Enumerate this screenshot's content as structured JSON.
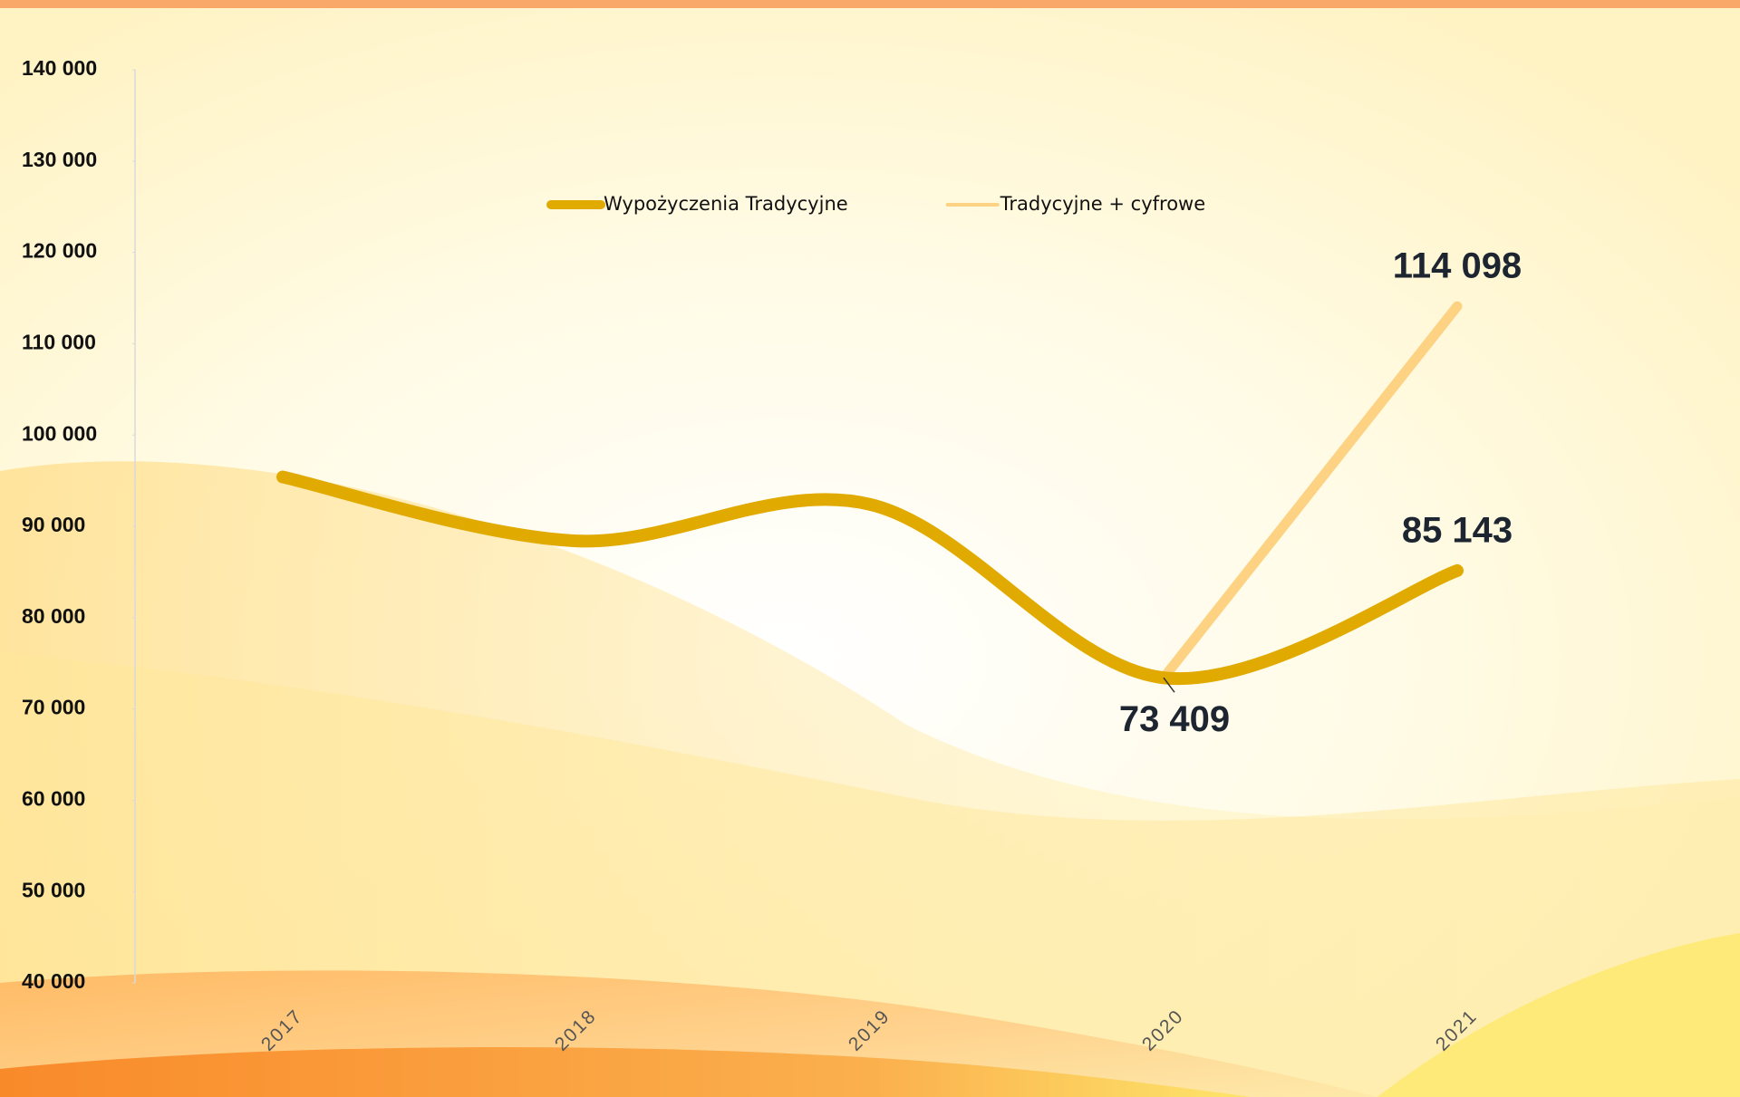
{
  "chart_data": {
    "type": "line",
    "categories": [
      "2017",
      "2018",
      "2019",
      "2020",
      "2021"
    ],
    "series": [
      {
        "name": "Wypożyczenia Tradycyjne",
        "color": "#e1aa00",
        "smooth": true,
        "values": [
          95400,
          88400,
          92400,
          73409,
          85143
        ],
        "value_labels": [
          null,
          null,
          null,
          "73 409",
          "85 143"
        ]
      },
      {
        "name": "Tradycyjne + cyfrowe",
        "color": "#fdd282",
        "smooth": false,
        "values": [
          null,
          null,
          null,
          73409,
          114098
        ],
        "value_labels": [
          null,
          null,
          null,
          null,
          "114 098"
        ]
      }
    ],
    "ylim": [
      40000,
      140000
    ],
    "yticks": [
      {
        "value": 40000,
        "label": "40 000"
      },
      {
        "value": 50000,
        "label": "50 000"
      },
      {
        "value": 60000,
        "label": "60 000"
      },
      {
        "value": 70000,
        "label": "70 000"
      },
      {
        "value": 80000,
        "label": "80 000"
      },
      {
        "value": 90000,
        "label": "90 000"
      },
      {
        "value": 100000,
        "label": "100 000"
      },
      {
        "value": 110000,
        "label": "110 000"
      },
      {
        "value": 120000,
        "label": "120 000"
      },
      {
        "value": 130000,
        "label": "130 000"
      },
      {
        "value": 140000,
        "label": "140 000"
      }
    ],
    "grid": false
  }
}
